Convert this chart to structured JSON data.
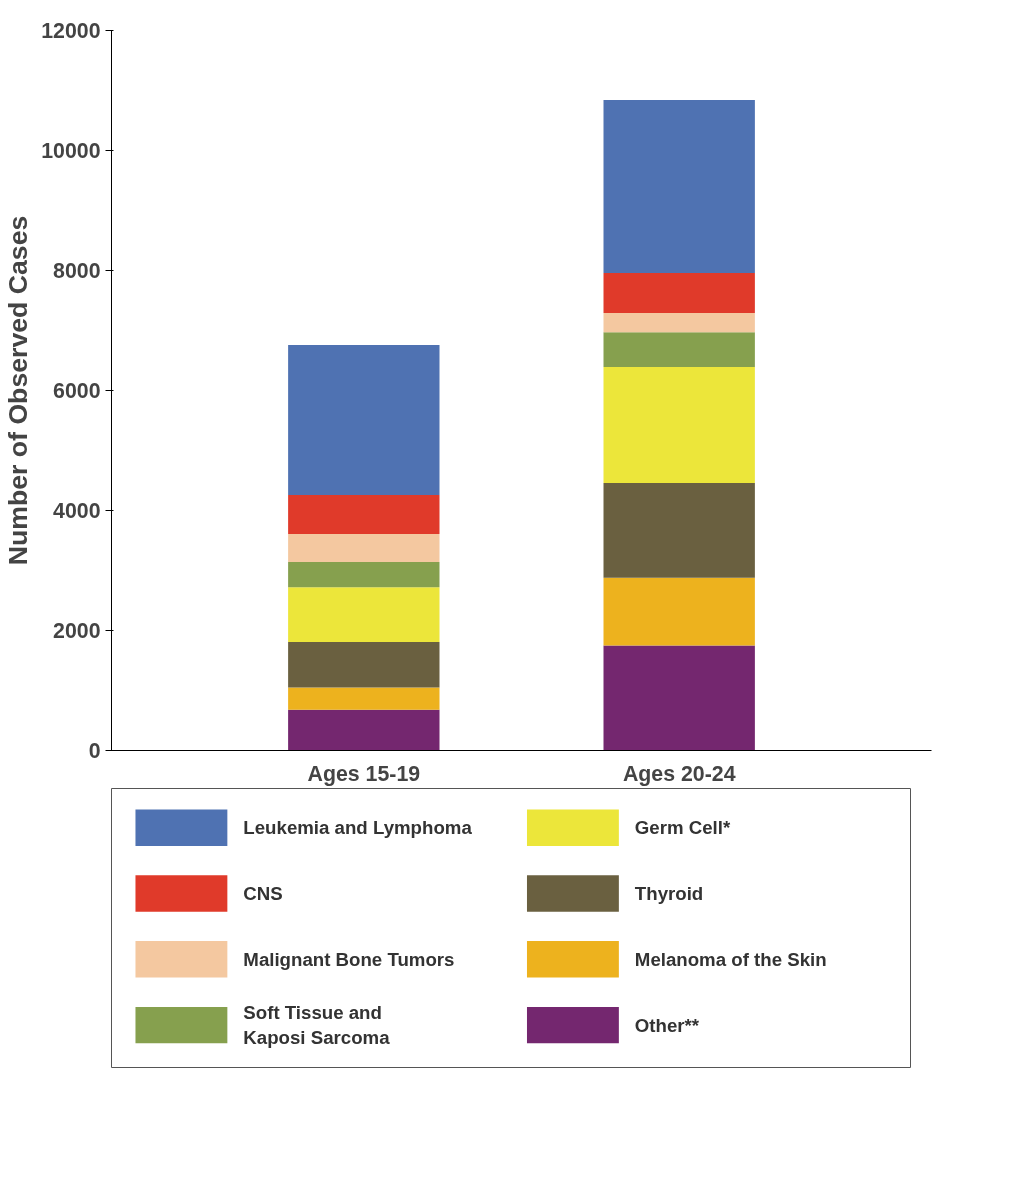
{
  "chart_data": {
    "type": "bar",
    "stacked": true,
    "ylabel": "Number of Observed Cases",
    "categories": [
      "Ages 15-19",
      "Ages 20-24"
    ],
    "ylim": [
      0,
      12000
    ],
    "yticks": [
      0,
      2000,
      4000,
      6000,
      8000,
      10000,
      12000
    ],
    "grid": false,
    "legend": "bottom",
    "series": [
      {
        "name": "Other**",
        "color": "#74276f",
        "values": [
          680,
          1750
        ]
      },
      {
        "name": "Melanoma of the Skin",
        "color": "#edb21e",
        "values": [
          370,
          1130
        ]
      },
      {
        "name": "Thyroid",
        "color": "#6a6040",
        "values": [
          760,
          1580
        ]
      },
      {
        "name": "Germ Cell*",
        "color": "#ece63a",
        "values": [
          910,
          1930
        ]
      },
      {
        "name": "Soft Tissue and Kaposi Sarcoma",
        "color": "#86a04e",
        "values": [
          420,
          580
        ]
      },
      {
        "name": "Malignant Bone Tumors",
        "color": "#f4c8a0",
        "values": [
          470,
          320
        ]
      },
      {
        "name": "CNS",
        "color": "#e03a2a",
        "values": [
          650,
          670
        ]
      },
      {
        "name": "Leukemia and Lymphoma",
        "color": "#4f72b2",
        "values": [
          2500,
          2880
        ]
      }
    ]
  }
}
